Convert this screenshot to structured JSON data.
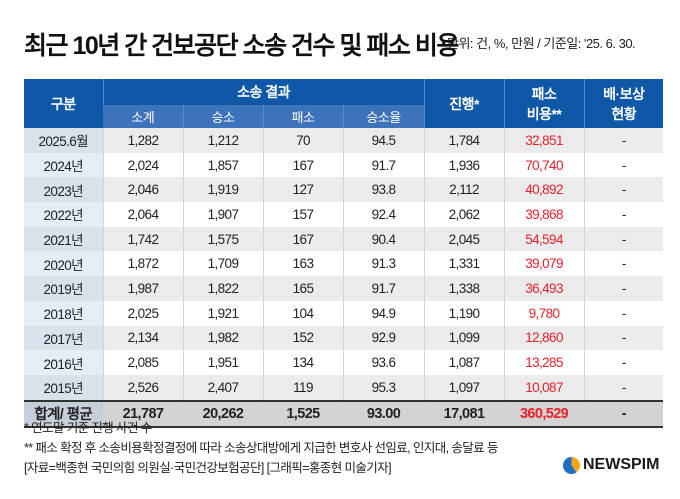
{
  "title": "최근 10년 간 건보공단 소송 건수 및 패소 비용",
  "unit_note": "단위: 건, %, 만원 / 기준일: '25. 6. 30.",
  "chart_data": {
    "type": "table",
    "headers": {
      "category": "구분",
      "group": "소송 결과",
      "sub": [
        "소계",
        "승소",
        "패소",
        "승소율"
      ],
      "ongoing": "진행*",
      "cost": "패소 비용**",
      "compensation": "배·보상 현황"
    },
    "rows": [
      [
        "2025.6월",
        "1,282",
        "1,212",
        "70",
        "94.5",
        "1,784",
        "32,851",
        "-"
      ],
      [
        "2024년",
        "2,024",
        "1,857",
        "167",
        "91.7",
        "1,936",
        "70,740",
        "-"
      ],
      [
        "2023년",
        "2,046",
        "1,919",
        "127",
        "93.8",
        "2,112",
        "40,892",
        "-"
      ],
      [
        "2022년",
        "2,064",
        "1,907",
        "157",
        "92.4",
        "2,062",
        "39,868",
        "-"
      ],
      [
        "2021년",
        "1,742",
        "1,575",
        "167",
        "90.4",
        "2,045",
        "54,594",
        "-"
      ],
      [
        "2020년",
        "1,872",
        "1,709",
        "163",
        "91.3",
        "1,331",
        "39,079",
        "-"
      ],
      [
        "2019년",
        "1,987",
        "1,822",
        "165",
        "91.7",
        "1,338",
        "36,493",
        "-"
      ],
      [
        "2018년",
        "2,025",
        "1,921",
        "104",
        "94.9",
        "1,190",
        "9,780",
        "-"
      ],
      [
        "2017년",
        "2,134",
        "1,982",
        "152",
        "92.9",
        "1,099",
        "12,860",
        "-"
      ],
      [
        "2016년",
        "2,085",
        "1,951",
        "134",
        "93.6",
        "1,087",
        "13,285",
        "-"
      ],
      [
        "2015년",
        "2,526",
        "2,407",
        "119",
        "95.3",
        "1,097",
        "10,087",
        "-"
      ]
    ],
    "total": [
      "합계/ 평균",
      "21,787",
      "20,262",
      "1,525",
      "93.00",
      "17,081",
      "360,529",
      "-"
    ]
  },
  "notes": [
    "* 연도말 기준 진행 사건 수",
    "** 패소 확정 후 소송비용확정결정에 따라 소송상대방에게 지급한 변호사 선임료, 인지대, 송달료 등",
    "[자료=백종현 국민의힘 의원실·국민건강보험공단] [그래픽=홍종현 미술기자]"
  ],
  "logo": "NEWSPIM",
  "colors": {
    "header": "#0f58a8",
    "subheader": "#3c73bb",
    "cost": "#e8202a"
  }
}
